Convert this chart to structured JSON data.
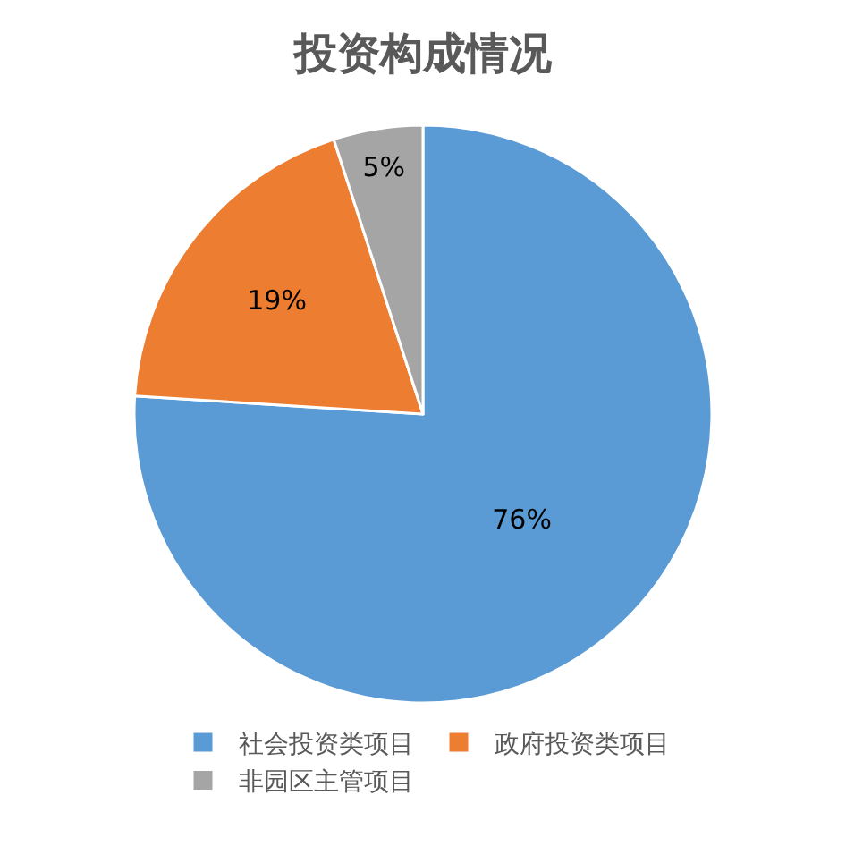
{
  "chart_data": {
    "type": "pie",
    "title": "投资构成情况",
    "categories": [
      "社会投资类项目",
      "政府投资类项目",
      "非园区主管项目"
    ],
    "values": [
      76,
      19,
      5
    ],
    "value_labels": [
      "76%",
      "19%",
      "5%"
    ],
    "colors": [
      "#5b9bd5",
      "#ed7d31",
      "#a5a5a5"
    ],
    "legend": "bottom"
  }
}
